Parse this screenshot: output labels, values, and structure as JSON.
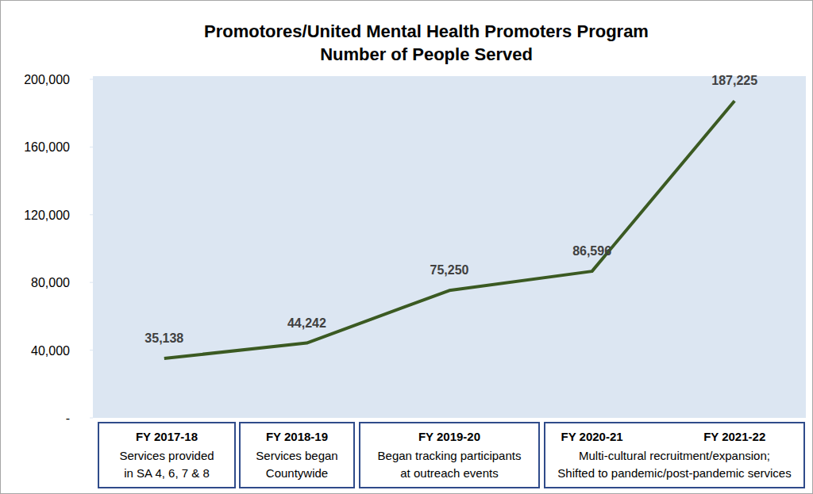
{
  "chart_data": {
    "type": "line",
    "title": "Promotores/United Mental Health Promoters Program",
    "subtitle": "Number of People Served",
    "categories": [
      "FY 2017-18",
      "FY 2018-19",
      "FY 2019-20",
      "FY 2020-21",
      "FY 2021-22"
    ],
    "values": [
      35138,
      44242,
      75250,
      86596,
      187225
    ],
    "value_labels": [
      "35,138",
      "44,242",
      "75,250",
      "86,596",
      "187,225"
    ],
    "color": "#3b5a22",
    "ylim": [
      0,
      200000
    ],
    "yticks": [
      {
        "value": 0,
        "label": "-"
      },
      {
        "value": 40000,
        "label": "40,000"
      },
      {
        "value": 80000,
        "label": "80,000"
      },
      {
        "value": 120000,
        "label": "120,000"
      },
      {
        "value": 160000,
        "label": "160,000"
      },
      {
        "value": 200000,
        "label": "200,000"
      }
    ],
    "grid": false,
    "data_labels": true,
    "annotations": [
      {
        "lines": [
          "Services provided",
          "in SA 4, 6, 7 & 8"
        ]
      },
      {
        "lines": [
          "Services began",
          "Countywide"
        ]
      },
      {
        "lines": [
          "Began tracking participants",
          "at outreach events"
        ]
      },
      {
        "lines": [
          "Multi-cultural recruitment/expansion;",
          "Shifted to pandemic/post-pandemic services"
        ]
      }
    ]
  }
}
